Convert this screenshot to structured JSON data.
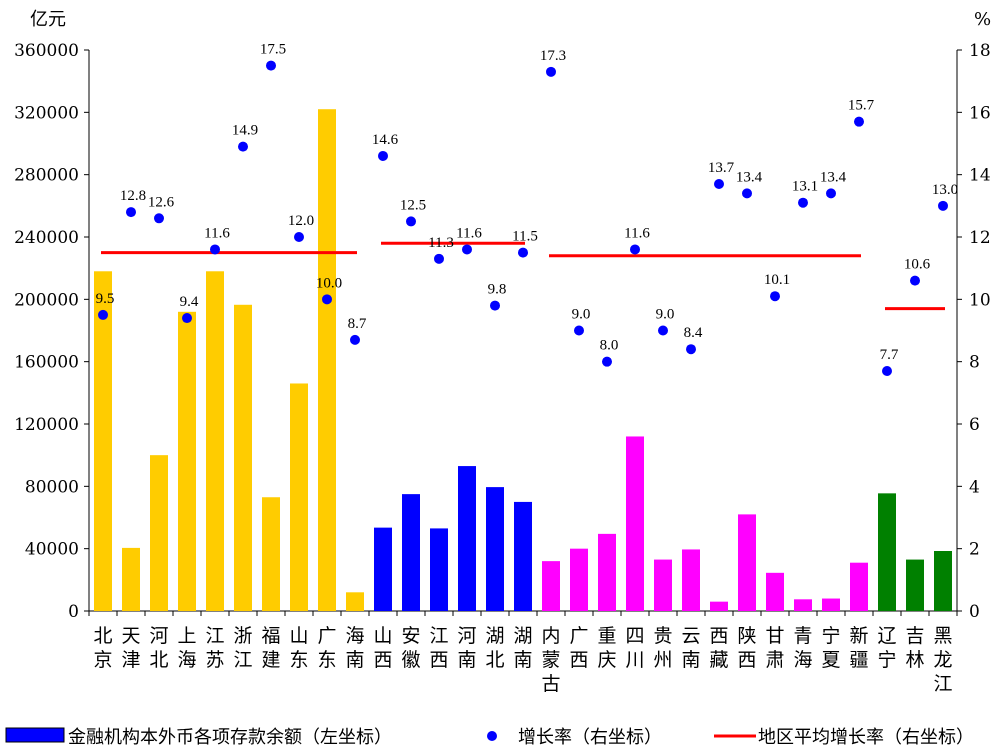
{
  "chart_data": {
    "type": "bar",
    "left_unit": "亿元",
    "right_unit": "%",
    "left_ticks": [
      "0",
      "40000",
      "80000",
      "120000",
      "160000",
      "200000",
      "240000",
      "280000",
      "320000",
      "360000"
    ],
    "right_ticks": [
      "0",
      "2",
      "4",
      "6",
      "8",
      "10",
      "12",
      "14",
      "16",
      "18"
    ],
    "ylim_left": [
      0,
      360000
    ],
    "ylim_right": [
      0,
      18
    ],
    "categories": [
      [
        "北",
        "京"
      ],
      [
        "天",
        "津"
      ],
      [
        "河",
        "北"
      ],
      [
        "上",
        "海"
      ],
      [
        "江",
        "苏"
      ],
      [
        "浙",
        "江"
      ],
      [
        "福",
        "建"
      ],
      [
        "山",
        "东"
      ],
      [
        "广",
        "东"
      ],
      [
        "海",
        "南"
      ],
      [
        "山",
        "西"
      ],
      [
        "安",
        "徽"
      ],
      [
        "江",
        "西"
      ],
      [
        "河",
        "南"
      ],
      [
        "湖",
        "北"
      ],
      [
        "湖",
        "南"
      ],
      [
        "内",
        "蒙",
        "古"
      ],
      [
        "广",
        "西"
      ],
      [
        "重",
        "庆"
      ],
      [
        "四",
        "川"
      ],
      [
        "贵",
        "州"
      ],
      [
        "云",
        "南"
      ],
      [
        "西",
        "藏"
      ],
      [
        "陕",
        "西"
      ],
      [
        "甘",
        "肃"
      ],
      [
        "青",
        "海"
      ],
      [
        "宁",
        "夏"
      ],
      [
        "新",
        "疆"
      ],
      [
        "辽",
        "宁"
      ],
      [
        "吉",
        "林"
      ],
      [
        "黑",
        "龙",
        "江"
      ]
    ],
    "regions": [
      {
        "color": "#FFCC00",
        "start": 0,
        "end": 9,
        "avg_growth": 11.5
      },
      {
        "color": "#0000FF",
        "start": 10,
        "end": 15,
        "avg_growth": 11.8
      },
      {
        "color": "#FF00FF",
        "start": 16,
        "end": 27,
        "avg_growth": 11.4
      },
      {
        "color": "#008000",
        "start": 28,
        "end": 30,
        "avg_growth": 9.7
      }
    ],
    "deposits": [
      218000,
      40500,
      100000,
      192000,
      218000,
      196500,
      73000,
      146000,
      322000,
      12000,
      53500,
      75000,
      53000,
      93000,
      79500,
      70000,
      32000,
      40000,
      49500,
      112000,
      33000,
      39500,
      6000,
      62000,
      24500,
      7500,
      8000,
      31000,
      75500,
      33000,
      38500
    ],
    "growth": [
      9.5,
      12.8,
      12.6,
      9.4,
      11.6,
      14.9,
      17.5,
      12.0,
      10.0,
      8.7,
      14.6,
      12.5,
      11.3,
      11.6,
      9.8,
      11.5,
      17.3,
      9.0,
      8.0,
      11.6,
      9.0,
      8.4,
      13.7,
      13.4,
      10.1,
      13.1,
      13.4,
      15.7,
      7.7,
      10.6,
      13.0
    ],
    "growth_labels": [
      "9.5",
      "12.8",
      "12.6",
      "9.4",
      "11.6",
      "14.9",
      "17.5",
      "12.0",
      "10.0",
      "8.7",
      "14.6",
      "12.5",
      "11.3",
      "11.6",
      "9.8",
      "11.5",
      "17.3",
      "9.0",
      "8.0",
      "11.6",
      "9.0",
      "8.4",
      "13.7",
      "13.4",
      "10.1",
      "13.1",
      "13.4",
      "15.7",
      "7.7",
      "10.6",
      "13.0"
    ],
    "legend": {
      "bars": "金融机构本外币各项存款余额（左坐标）",
      "dots": "增长率（右坐标）",
      "line": "地区平均增长率（右坐标）"
    },
    "dot_color": "#0000FF",
    "line_color": "#FF0000"
  }
}
